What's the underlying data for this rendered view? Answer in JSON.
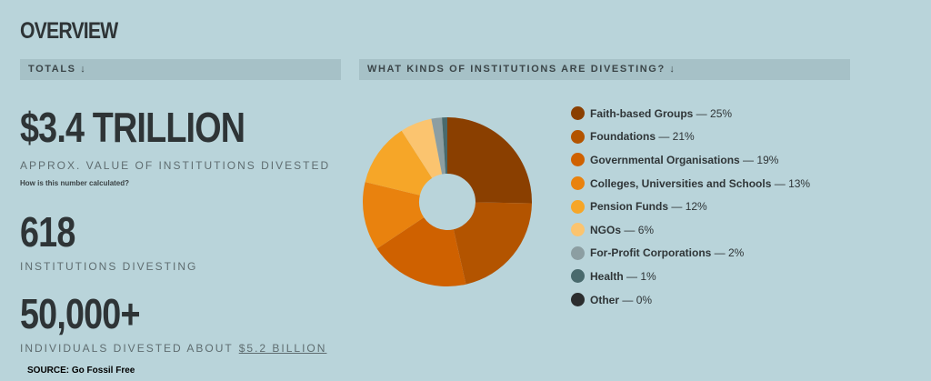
{
  "header": {
    "title": "OVERVIEW",
    "totals_heading": "TOTALS ↓"
  },
  "totals": [
    {
      "value": "$3.4 TRILLION",
      "label": "APPROX. VALUE OF INSTITUTIONS DIVESTED",
      "note": "How is this number calculated?"
    },
    {
      "value": "618",
      "label": "INSTITUTIONS DIVESTING"
    },
    {
      "value": "50,000+",
      "label": "INDIVIDUALS DIVESTED ABOUT",
      "link": "$5.2 BILLION"
    }
  ],
  "source": "SOURCE: Go Fossil Free",
  "chart_data": {
    "type": "pie",
    "title": "WHAT KINDS OF INSTITUTIONS ARE DIVESTING? ↓",
    "categories": [
      "Faith-based Groups",
      "Foundations",
      "Governmental Organisations",
      "Colleges, Universities and Schools",
      "Pension Funds",
      "NGOs",
      "For-Profit Corporations",
      "Health",
      "Other"
    ],
    "values": [
      25,
      21,
      19,
      13,
      12,
      6,
      2,
      1,
      0
    ],
    "value_labels": [
      "25%",
      "21%",
      "19%",
      "13%",
      "12%",
      "6%",
      "2%",
      "1%",
      "0%"
    ],
    "colors": [
      "#8a3f00",
      "#b35400",
      "#cf6100",
      "#e9820e",
      "#f6a628",
      "#fbc46f",
      "#8c9ea2",
      "#496a6d",
      "#2b2d2e"
    ],
    "donut": true
  }
}
